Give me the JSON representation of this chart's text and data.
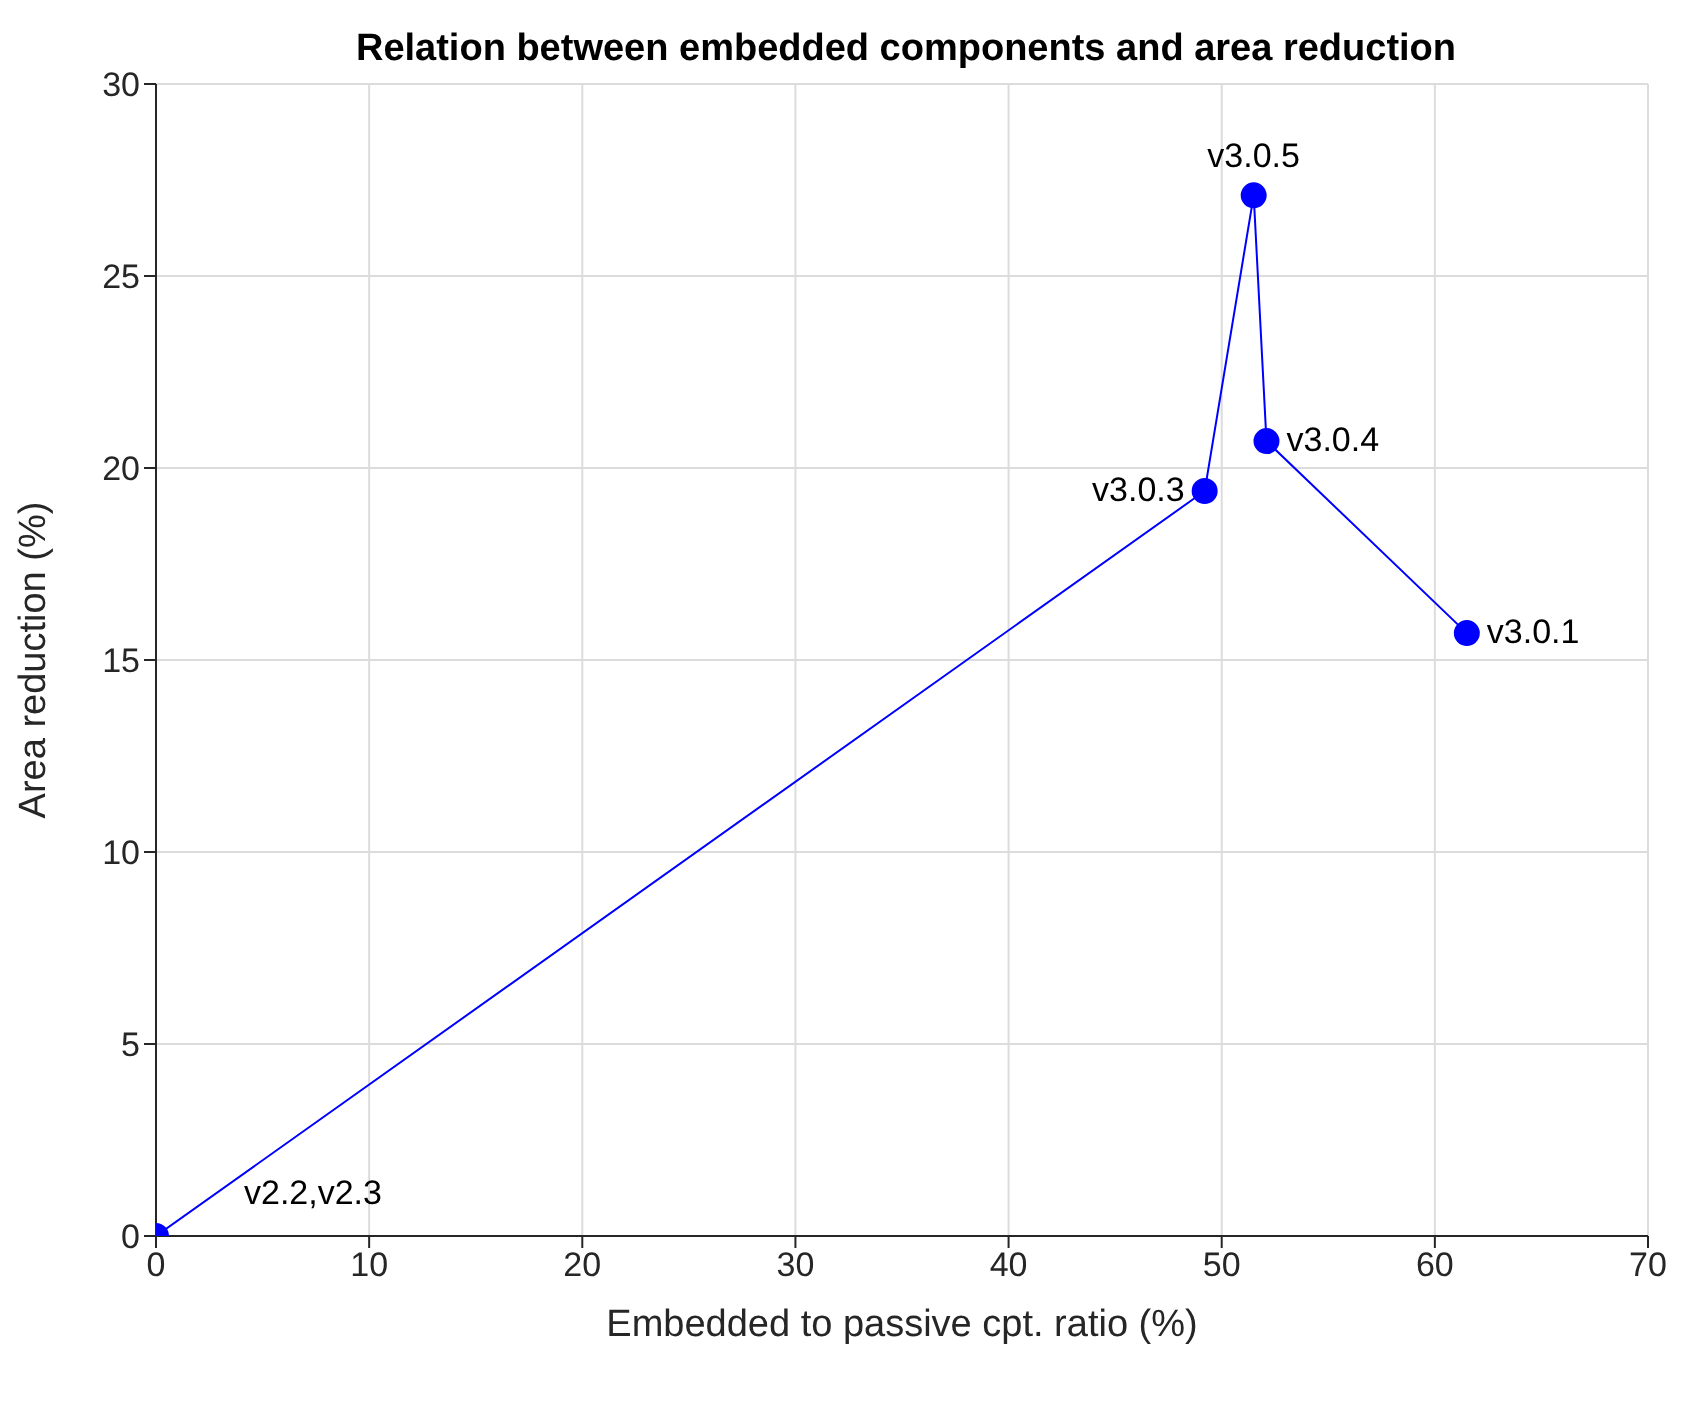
{
  "chart_data": {
    "type": "line",
    "title": "Relation between embedded components and area reduction",
    "xlabel": "Embedded to passive cpt. ratio (%)",
    "ylabel": "Area reduction (%)",
    "x": [
      0,
      49.2,
      51.5,
      52.1,
      61.5
    ],
    "series": [
      {
        "color": "#0000ff",
        "values": [
          0,
          19.4,
          27.1,
          20.7,
          15.7
        ]
      }
    ],
    "marker": "circle",
    "xlim": [
      0,
      70
    ],
    "xticks": [
      0,
      10,
      20,
      30,
      40,
      50,
      60,
      70
    ],
    "ylim": [
      0,
      30
    ],
    "yticks": [
      0,
      5,
      10,
      15,
      20,
      25,
      30
    ],
    "grid": true,
    "annotations": [
      {
        "text": "v2.2,v2.3",
        "x": 0,
        "y": 0
      },
      {
        "text": "v3.0.3",
        "x": 49.2,
        "y": 19.4
      },
      {
        "text": "v3.0.5",
        "x": 51.5,
        "y": 27.1
      },
      {
        "text": "v3.0.4",
        "x": 52.1,
        "y": 20.7
      },
      {
        "text": "v3.0.1",
        "x": 61.5,
        "y": 15.7
      }
    ]
  }
}
